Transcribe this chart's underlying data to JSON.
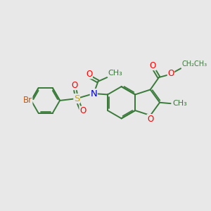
{
  "background_color": "#e8e8e8",
  "bond_color": "#3a7a3a",
  "bond_width": 1.4,
  "atom_colors": {
    "O": "#ff0000",
    "N": "#0000cc",
    "S": "#ccaa00",
    "Br": "#cc5500",
    "C": "#2d6b2d"
  },
  "font_size": 8.5,
  "fig_width": 3.0,
  "fig_height": 3.0,
  "dpi": 100,
  "xlim": [
    0,
    10
  ],
  "ylim": [
    0,
    10
  ]
}
